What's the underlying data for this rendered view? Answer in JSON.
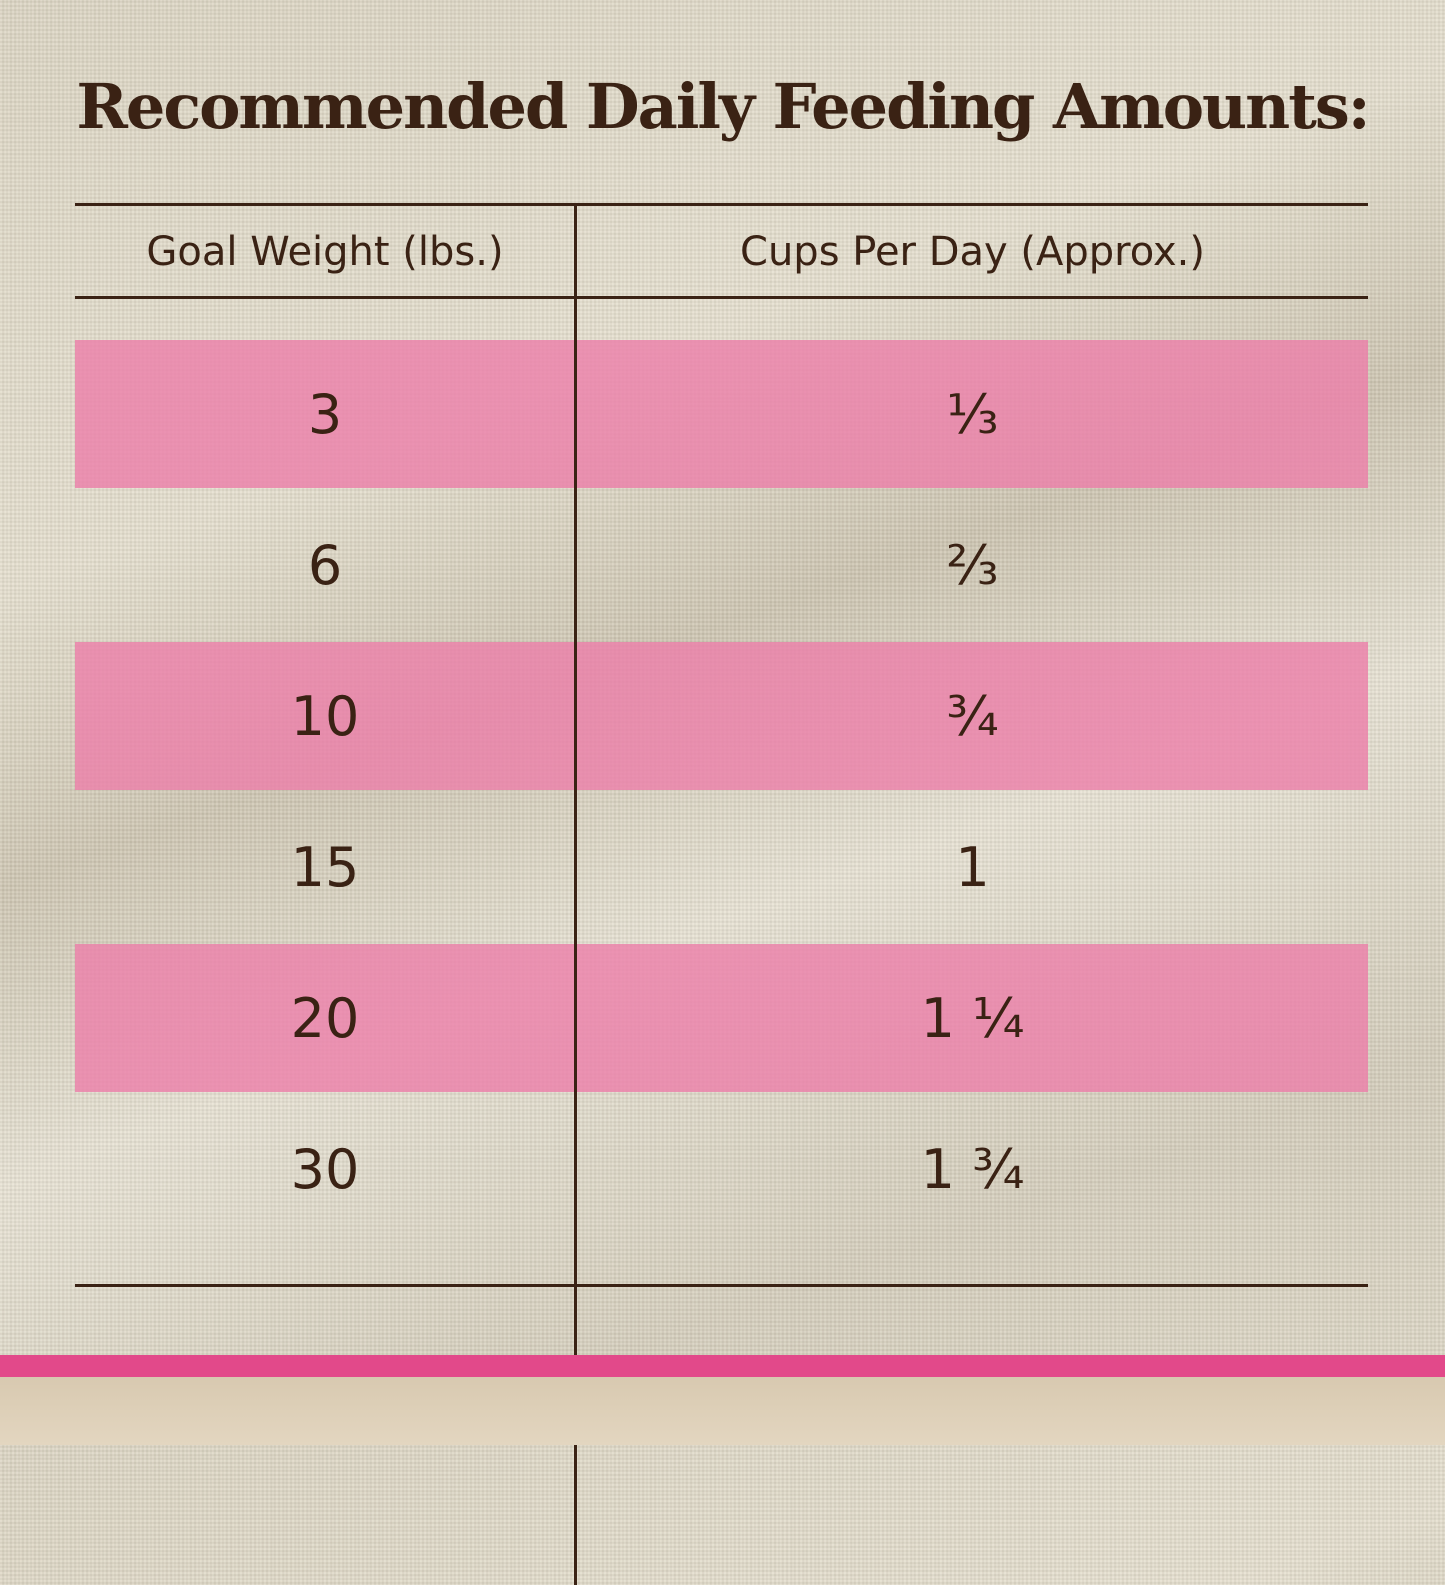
{
  "title": "Recommended Daily Feeding Amounts:",
  "table": {
    "headers": [
      "Goal Weight (lbs.)",
      "Cups Per Day (Approx.)"
    ],
    "rows": [
      [
        "3",
        "⅓"
      ],
      [
        "6",
        "⅔"
      ],
      [
        "10",
        "¾"
      ],
      [
        "15",
        "1"
      ],
      [
        "20",
        "1 ¼"
      ],
      [
        "30",
        "1 ¾"
      ]
    ]
  }
}
